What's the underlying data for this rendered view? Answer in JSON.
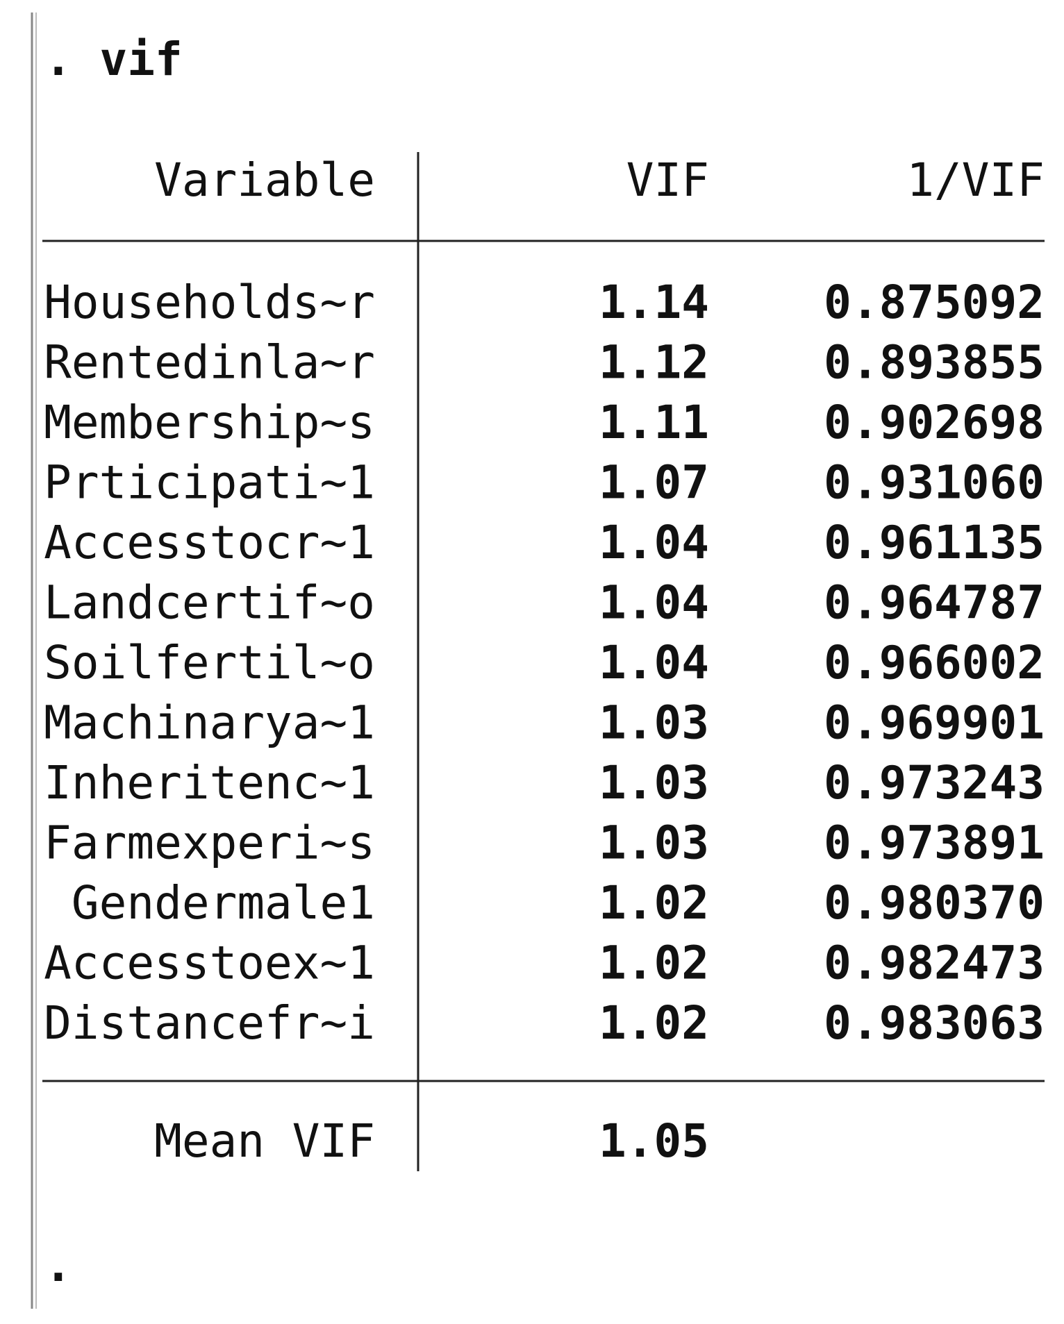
{
  "command": ". vif",
  "table": {
    "header": [
      "Variable",
      "VIF",
      "1/VIF"
    ],
    "rows": [
      [
        "Households~r",
        "1.14",
        "0.875092"
      ],
      [
        "Rentedinla~r",
        "1.12",
        "0.893855"
      ],
      [
        "Membership~s",
        "1.11",
        "0.902698"
      ],
      [
        "Prticipati~1",
        "1.07",
        "0.931060"
      ],
      [
        "Accesstocr~1",
        "1.04",
        "0.961135"
      ],
      [
        "Landcertif~o",
        "1.04",
        "0.964787"
      ],
      [
        "Soilfertil~o",
        "1.04",
        "0.966002"
      ],
      [
        "Machinarya~1",
        "1.03",
        "0.969901"
      ],
      [
        "Inheritenc~1",
        "1.03",
        "0.973243"
      ],
      [
        "Farmexperi~s",
        "1.03",
        "0.973891"
      ],
      [
        "Gendermale1",
        "1.02",
        "0.980370"
      ],
      [
        "Accesstoex~1",
        "1.02",
        "0.982473"
      ],
      [
        "Distancefr~i",
        "1.02",
        "0.983063"
      ]
    ],
    "footer": [
      "Mean VIF",
      "1.05"
    ]
  },
  "prompt": "."
}
